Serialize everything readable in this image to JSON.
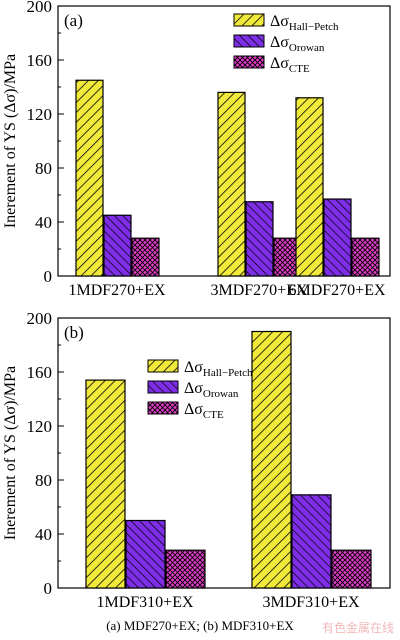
{
  "colors": {
    "hall_petch_fill": "#f2ea3a",
    "orowan_fill": "#7d2ee6",
    "cte_fill": "#e03cc8",
    "axis": "#000000"
  },
  "legend_entries": [
    {
      "symbol": "Δσ",
      "sub": "Hall−Petch"
    },
    {
      "symbol": "Δσ",
      "sub": "Orowan"
    },
    {
      "symbol": "Δσ",
      "sub": "CTE"
    }
  ],
  "chart_data": [
    {
      "type": "bar",
      "panel_label": "(a)",
      "ylabel": "Inerement of YS (Δσ)/MPa",
      "ylim": [
        0,
        200
      ],
      "yticks": [
        0,
        40,
        80,
        120,
        160,
        200
      ],
      "categories": [
        "1MDF270+EX",
        "3MDF270+EX",
        "6MDF270+EX"
      ],
      "series": [
        {
          "name": "ΔσHall−Petch",
          "values": [
            145,
            136,
            132
          ]
        },
        {
          "name": "ΔσOrowan",
          "values": [
            45,
            55,
            57
          ]
        },
        {
          "name": "ΔσCTE",
          "values": [
            28,
            28,
            28
          ]
        }
      ],
      "legend_position": "top-right"
    },
    {
      "type": "bar",
      "panel_label": "(b)",
      "ylabel": "Inerement of YS (Δσ)/MPa",
      "ylim": [
        0,
        200
      ],
      "yticks": [
        0,
        40,
        80,
        120,
        160,
        200
      ],
      "categories": [
        "1MDF310+EX",
        "3MDF310+EX"
      ],
      "series": [
        {
          "name": "ΔσHall−Petch",
          "values": [
            154,
            190
          ]
        },
        {
          "name": "ΔσOrowan",
          "values": [
            50,
            69
          ]
        },
        {
          "name": "ΔσCTE",
          "values": [
            28,
            28
          ]
        }
      ],
      "legend_position": "top-left"
    }
  ],
  "caption": "(a)    MDF270+EX; (b) MDF310+EX",
  "watermark": "有色金属在线"
}
